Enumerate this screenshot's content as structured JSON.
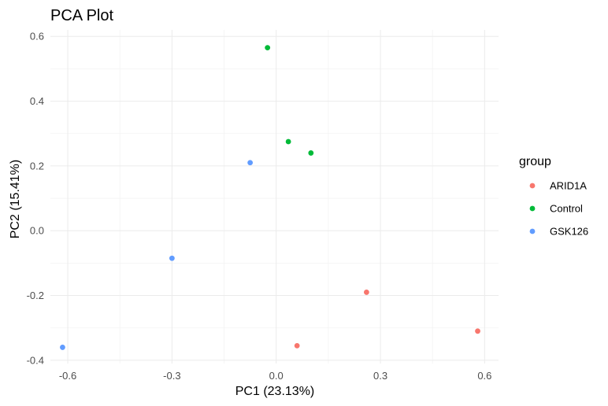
{
  "chart_data": {
    "type": "scatter",
    "title": "PCA Plot",
    "xlabel": "PC1 (23.13%)",
    "ylabel": "PC2 (15.41%)",
    "xlim": [
      -0.65,
      0.64
    ],
    "ylim": [
      -0.41,
      0.62
    ],
    "x_ticks": [
      -0.6,
      -0.3,
      0.0,
      0.3,
      0.6
    ],
    "x_tick_labels": [
      "-0.6",
      "-0.3",
      "0.0",
      "0.3",
      "0.6"
    ],
    "y_ticks": [
      -0.4,
      -0.2,
      0.0,
      0.2,
      0.4,
      0.6
    ],
    "y_tick_labels": [
      "-0.4",
      "-0.2",
      "0.0",
      "0.2",
      "0.4",
      "0.6"
    ],
    "grid": true,
    "legend": {
      "title": "group",
      "position": "right"
    },
    "series": [
      {
        "name": "ARID1A",
        "color": "#F8766D",
        "points": [
          {
            "x": 0.06,
            "y": -0.355
          },
          {
            "x": 0.26,
            "y": -0.19
          },
          {
            "x": 0.58,
            "y": -0.31
          }
        ]
      },
      {
        "name": "Control",
        "color": "#00BA38",
        "points": [
          {
            "x": -0.025,
            "y": 0.565
          },
          {
            "x": 0.035,
            "y": 0.275
          },
          {
            "x": 0.1,
            "y": 0.24
          }
        ]
      },
      {
        "name": "GSK126",
        "color": "#619CFF",
        "points": [
          {
            "x": -0.075,
            "y": 0.21
          },
          {
            "x": -0.3,
            "y": -0.085
          },
          {
            "x": -0.615,
            "y": -0.36
          }
        ]
      }
    ]
  }
}
